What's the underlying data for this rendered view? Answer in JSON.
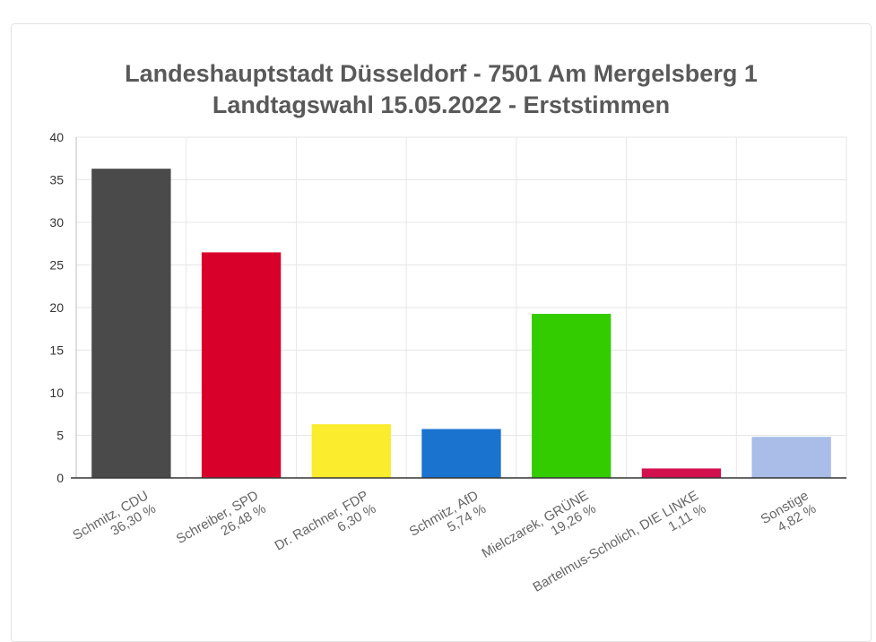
{
  "chart_data": {
    "type": "bar",
    "title_lines": [
      "Landeshauptstadt Düsseldorf - 7501 Am Mergelsberg 1",
      "Landtagswahl 15.05.2022  - Erststimmen"
    ],
    "categories": [
      [
        "Schmitz, CDU",
        "36,30 %"
      ],
      [
        "Schreiber, SPD",
        "26,48 %"
      ],
      [
        "Dr. Rachner, FDP",
        "6,30 %"
      ],
      [
        "Schmitz, AfD",
        "5,74 %"
      ],
      [
        "Mielczarek, GRÜNE",
        "19,26 %"
      ],
      [
        "Bartelmus-Scholich, DIE LINKE",
        "1,11 %"
      ],
      [
        "Sonstige",
        "4,82 %"
      ]
    ],
    "values": [
      36.3,
      26.48,
      6.3,
      5.74,
      19.26,
      1.11,
      4.82
    ],
    "colors": [
      "#4a4a4a",
      "#d8002a",
      "#fbec2d",
      "#1a73cf",
      "#33cc00",
      "#d3104e",
      "#a9bde8"
    ],
    "ylim": [
      0,
      40
    ],
    "yticks": [
      "0",
      "5",
      "10",
      "15",
      "20",
      "25",
      "30",
      "35",
      "40"
    ],
    "grid": true,
    "legend": "none"
  }
}
